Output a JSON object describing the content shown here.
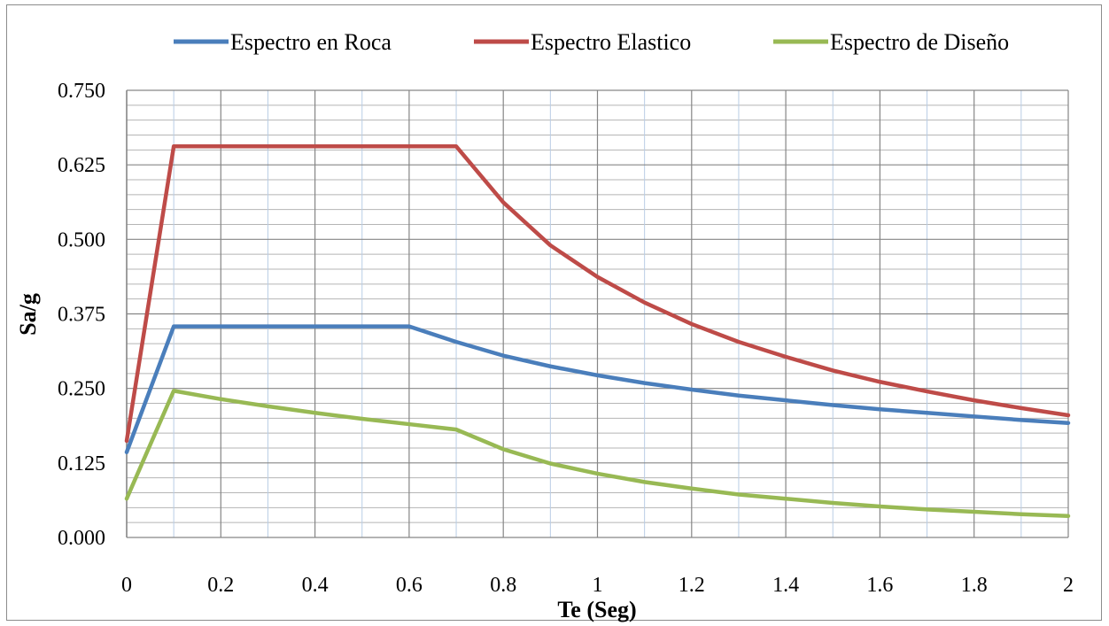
{
  "chart_data": {
    "type": "line",
    "xlabel": "Te (Seg)",
    "ylabel": "Sa/g",
    "xlim": [
      0,
      2
    ],
    "ylim": [
      0,
      0.75
    ],
    "x_ticks": [
      "0",
      "0.2",
      "0.4",
      "0.6",
      "0.8",
      "1",
      "1.2",
      "1.4",
      "1.6",
      "1.8",
      "2"
    ],
    "y_ticks": [
      "0.000",
      "0.125",
      "0.250",
      "0.375",
      "0.500",
      "0.625",
      "0.750"
    ],
    "grid": true,
    "legend_position": "top",
    "x": [
      0,
      0.1,
      0.2,
      0.3,
      0.4,
      0.5,
      0.6,
      0.7,
      0.8,
      0.9,
      1.0,
      1.1,
      1.2,
      1.3,
      1.4,
      1.5,
      1.6,
      1.7,
      1.8,
      1.9,
      2.0
    ],
    "series": [
      {
        "name": "Espectro en Roca",
        "color": "#4a7ebb",
        "values": [
          0.143,
          0.354,
          0.354,
          0.354,
          0.354,
          0.354,
          0.354,
          0.328,
          0.305,
          0.287,
          0.272,
          0.259,
          0.248,
          0.238,
          0.23,
          0.222,
          0.215,
          0.209,
          0.203,
          0.197,
          0.192
        ]
      },
      {
        "name": "Espectro Elastico",
        "color": "#be4b48",
        "values": [
          0.162,
          0.656,
          0.656,
          0.656,
          0.656,
          0.656,
          0.656,
          0.656,
          0.562,
          0.49,
          0.437,
          0.394,
          0.358,
          0.328,
          0.303,
          0.28,
          0.261,
          0.245,
          0.23,
          0.217,
          0.205
        ]
      },
      {
        "name": "Espectro de Diseño",
        "color": "#98b954",
        "values": [
          0.065,
          0.246,
          0.232,
          0.22,
          0.209,
          0.199,
          0.19,
          0.181,
          0.148,
          0.124,
          0.107,
          0.093,
          0.082,
          0.072,
          0.065,
          0.058,
          0.052,
          0.047,
          0.043,
          0.039,
          0.036
        ]
      }
    ]
  }
}
